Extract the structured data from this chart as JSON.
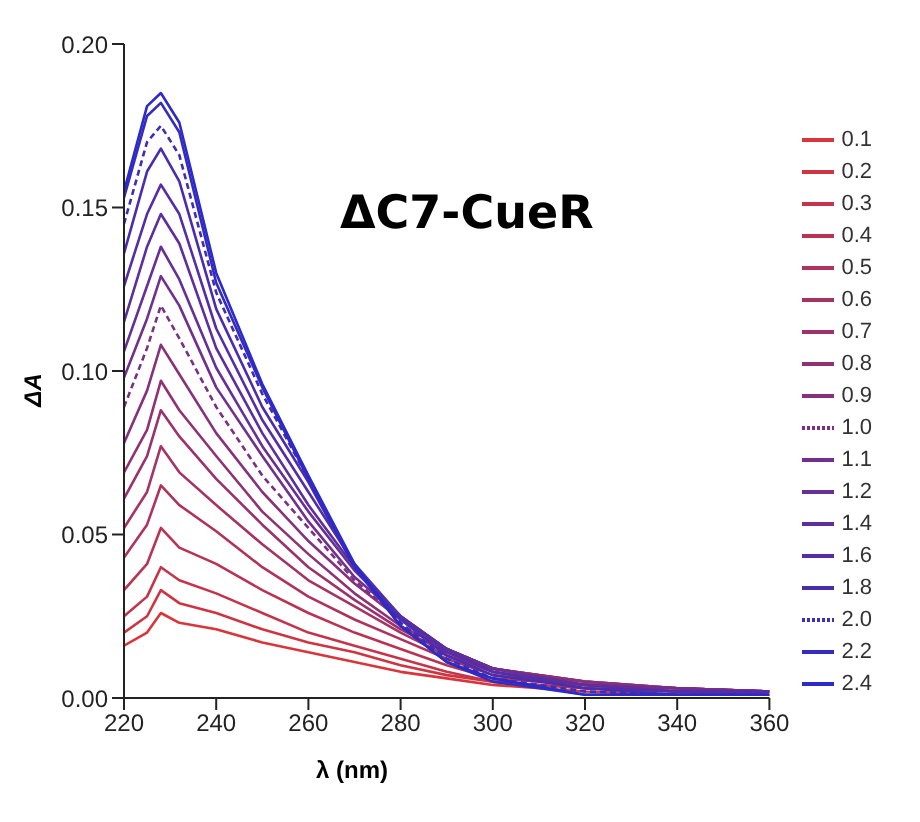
{
  "chart_data": {
    "type": "line",
    "title": "ΔC7-CueR",
    "xlabel": "λ (nm)",
    "ylabel": "ΔA",
    "x": [
      220,
      225,
      228,
      232,
      240,
      250,
      260,
      270,
      280,
      290,
      300,
      320,
      340,
      360
    ],
    "xlim": [
      220,
      360
    ],
    "xticks": [
      220,
      240,
      260,
      280,
      300,
      320,
      340,
      360
    ],
    "ylim": [
      0,
      0.2
    ],
    "yticks": [
      {
        "value": 0,
        "label": "0.00"
      },
      {
        "value": 0.05,
        "label": "0.05"
      },
      {
        "value": 0.1,
        "label": "0.10"
      },
      {
        "value": 0.15,
        "label": "0.15"
      },
      {
        "value": 0.2,
        "label": "0.20"
      }
    ],
    "legend": "right",
    "marker": "none",
    "series": [
      {
        "name": "0.1",
        "color": "#d8363a",
        "line_style": "solid",
        "values": [
          0.016,
          0.02,
          0.026,
          0.023,
          0.021,
          0.017,
          0.014,
          0.011,
          0.008,
          0.006,
          0.004,
          0.002,
          0.001,
          0.001
        ]
      },
      {
        "name": "0.2",
        "color": "#ce3542",
        "line_style": "solid",
        "values": [
          0.02,
          0.025,
          0.033,
          0.029,
          0.026,
          0.021,
          0.017,
          0.014,
          0.01,
          0.007,
          0.005,
          0.003,
          0.002,
          0.001
        ]
      },
      {
        "name": "0.3",
        "color": "#c4354b",
        "line_style": "solid",
        "values": [
          0.025,
          0.031,
          0.04,
          0.036,
          0.032,
          0.026,
          0.02,
          0.016,
          0.012,
          0.008,
          0.005,
          0.003,
          0.002,
          0.001
        ]
      },
      {
        "name": "0.4",
        "color": "#b93453",
        "line_style": "solid",
        "values": [
          0.033,
          0.041,
          0.052,
          0.046,
          0.041,
          0.033,
          0.026,
          0.02,
          0.015,
          0.01,
          0.006,
          0.004,
          0.002,
          0.002
        ]
      },
      {
        "name": "0.5",
        "color": "#af335c",
        "line_style": "solid",
        "values": [
          0.043,
          0.053,
          0.065,
          0.059,
          0.051,
          0.04,
          0.031,
          0.024,
          0.018,
          0.012,
          0.007,
          0.004,
          0.003,
          0.002
        ]
      },
      {
        "name": "0.6",
        "color": "#a53364",
        "line_style": "solid",
        "values": [
          0.052,
          0.063,
          0.077,
          0.069,
          0.059,
          0.047,
          0.036,
          0.028,
          0.02,
          0.013,
          0.008,
          0.004,
          0.003,
          0.002
        ]
      },
      {
        "name": "0.7",
        "color": "#9b326c",
        "line_style": "solid",
        "values": [
          0.061,
          0.074,
          0.088,
          0.08,
          0.067,
          0.053,
          0.04,
          0.03,
          0.021,
          0.014,
          0.009,
          0.005,
          0.003,
          0.002
        ]
      },
      {
        "name": "0.8",
        "color": "#913175",
        "line_style": "solid",
        "values": [
          0.069,
          0.082,
          0.097,
          0.088,
          0.074,
          0.057,
          0.044,
          0.032,
          0.022,
          0.015,
          0.009,
          0.005,
          0.003,
          0.002
        ]
      },
      {
        "name": "0.9",
        "color": "#87317d",
        "line_style": "solid",
        "values": [
          0.078,
          0.094,
          0.108,
          0.099,
          0.081,
          0.063,
          0.048,
          0.035,
          0.024,
          0.015,
          0.009,
          0.005,
          0.003,
          0.002
        ]
      },
      {
        "name": "1.0",
        "color": "#7c3085",
        "line_style": "dashed",
        "values": [
          0.089,
          0.107,
          0.12,
          0.11,
          0.089,
          0.068,
          0.052,
          0.036,
          0.024,
          0.015,
          0.009,
          0.004,
          0.003,
          0.002
        ]
      },
      {
        "name": "1.1",
        "color": "#722f8e",
        "line_style": "solid",
        "values": [
          0.098,
          0.116,
          0.129,
          0.12,
          0.095,
          0.074,
          0.054,
          0.037,
          0.025,
          0.015,
          0.009,
          0.004,
          0.003,
          0.002
        ]
      },
      {
        "name": "1.2",
        "color": "#682f96",
        "line_style": "solid",
        "values": [
          0.106,
          0.126,
          0.138,
          0.128,
          0.101,
          0.077,
          0.057,
          0.039,
          0.025,
          0.015,
          0.009,
          0.004,
          0.002,
          0.002
        ]
      },
      {
        "name": "1.4",
        "color": "#5e2e9e",
        "line_style": "solid",
        "values": [
          0.115,
          0.138,
          0.148,
          0.139,
          0.107,
          0.081,
          0.059,
          0.04,
          0.025,
          0.015,
          0.008,
          0.004,
          0.002,
          0.002
        ]
      },
      {
        "name": "1.6",
        "color": "#542da7",
        "line_style": "solid",
        "values": [
          0.126,
          0.148,
          0.157,
          0.148,
          0.113,
          0.085,
          0.063,
          0.041,
          0.025,
          0.014,
          0.008,
          0.003,
          0.002,
          0.002
        ]
      },
      {
        "name": "1.8",
        "color": "#4a2daf",
        "line_style": "solid",
        "values": [
          0.136,
          0.161,
          0.168,
          0.158,
          0.119,
          0.089,
          0.066,
          0.04,
          0.024,
          0.013,
          0.007,
          0.003,
          0.001,
          0.001
        ]
      },
      {
        "name": "2.0",
        "color": "#3f2cb7",
        "line_style": "dashed",
        "values": [
          0.145,
          0.17,
          0.175,
          0.166,
          0.124,
          0.093,
          0.067,
          0.04,
          0.023,
          0.012,
          0.006,
          0.002,
          0.001,
          0.001
        ]
      },
      {
        "name": "2.2",
        "color": "#352bc0",
        "line_style": "solid",
        "values": [
          0.153,
          0.178,
          0.182,
          0.173,
          0.127,
          0.095,
          0.067,
          0.04,
          0.022,
          0.011,
          0.005,
          0.001,
          0.001,
          0.001
        ]
      },
      {
        "name": "2.4",
        "color": "#2b2bc8",
        "line_style": "solid",
        "values": [
          0.155,
          0.181,
          0.185,
          0.176,
          0.13,
          0.096,
          0.068,
          0.041,
          0.022,
          0.011,
          0.006,
          0.001,
          0.001,
          0.001
        ]
      }
    ]
  }
}
